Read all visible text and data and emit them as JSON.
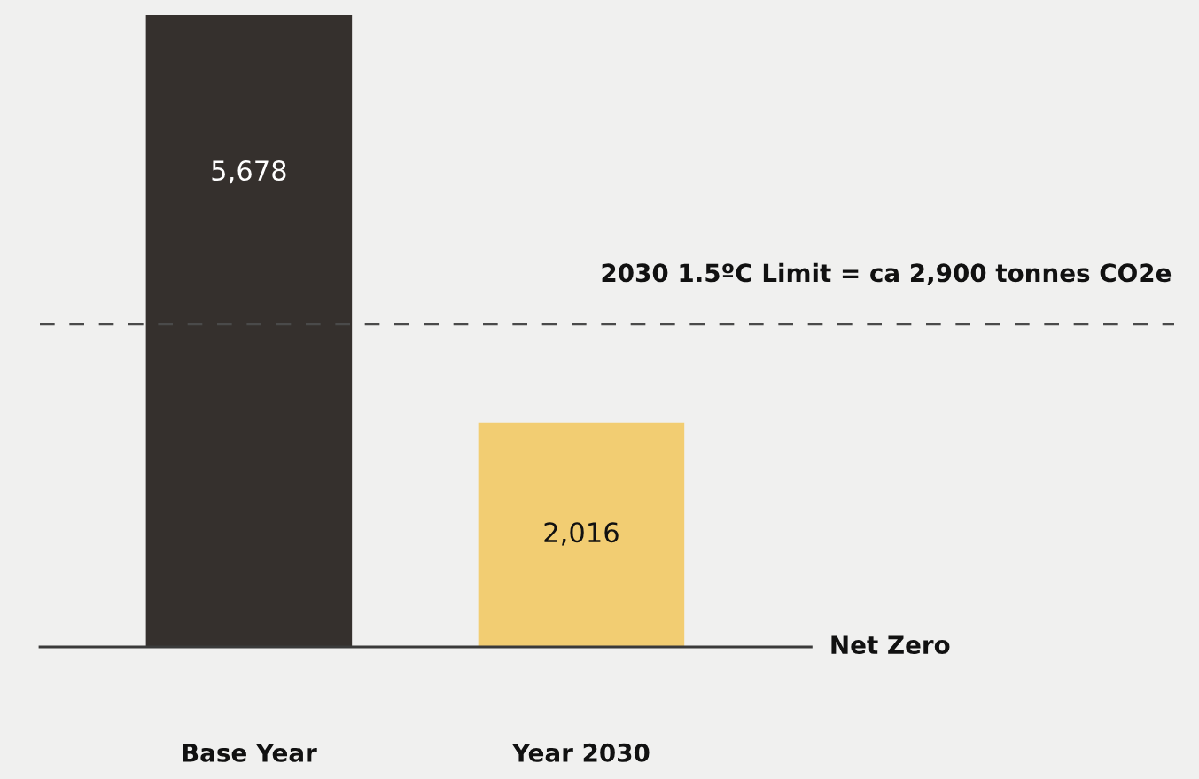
{
  "chart_data": {
    "type": "bar",
    "categories": [
      "Base Year",
      "Year 2030"
    ],
    "values": [
      5678,
      2016
    ],
    "colors": [
      "#35302d",
      "#f2cd72"
    ],
    "value_labels": [
      "5,678",
      "2,016"
    ],
    "ref_lines": [
      {
        "axis": "y",
        "value": 2900,
        "label": "2030 1.5ºC Limit = ca 2,900 tonnes CO2e",
        "line_style": "dashed",
        "color": "#4a4a4a"
      },
      {
        "axis": "y",
        "value": 0,
        "label": "Net Zero",
        "line_style": "solid",
        "color": "#3a3a3a"
      }
    ],
    "grid": false,
    "legend": false
  }
}
